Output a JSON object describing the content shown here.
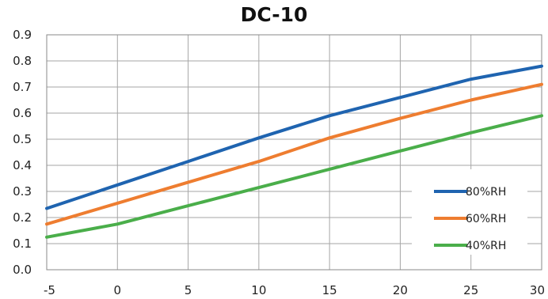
{
  "chart_data": {
    "type": "line",
    "title": "DC-10",
    "xlabel": "",
    "ylabel": "",
    "x": [
      -5,
      0,
      5,
      10,
      15,
      20,
      25,
      30
    ],
    "xlim": [
      -5,
      30
    ],
    "ylim": [
      0,
      0.9
    ],
    "x_ticks": [
      "-5",
      "0",
      "5",
      "10",
      "15",
      "20",
      "25",
      "30"
    ],
    "y_ticks": [
      "0.0",
      "0.1",
      "0.2",
      "0.3",
      "0.4",
      "0.5",
      "0.6",
      "0.7",
      "0.8",
      "0.9"
    ],
    "grid": true,
    "legend_position": "bottom-right",
    "series": [
      {
        "name": "80%RH",
        "color": "#1f64b0",
        "values": [
          0.235,
          0.325,
          0.415,
          0.505,
          0.59,
          0.66,
          0.73,
          0.78
        ]
      },
      {
        "name": "60%RH",
        "color": "#ee7d30",
        "values": [
          0.175,
          0.255,
          0.335,
          0.415,
          0.505,
          0.58,
          0.65,
          0.71
        ]
      },
      {
        "name": "40%RH",
        "color": "#4aae4a",
        "values": [
          0.125,
          0.175,
          0.245,
          0.315,
          0.385,
          0.455,
          0.525,
          0.59
        ]
      }
    ]
  }
}
